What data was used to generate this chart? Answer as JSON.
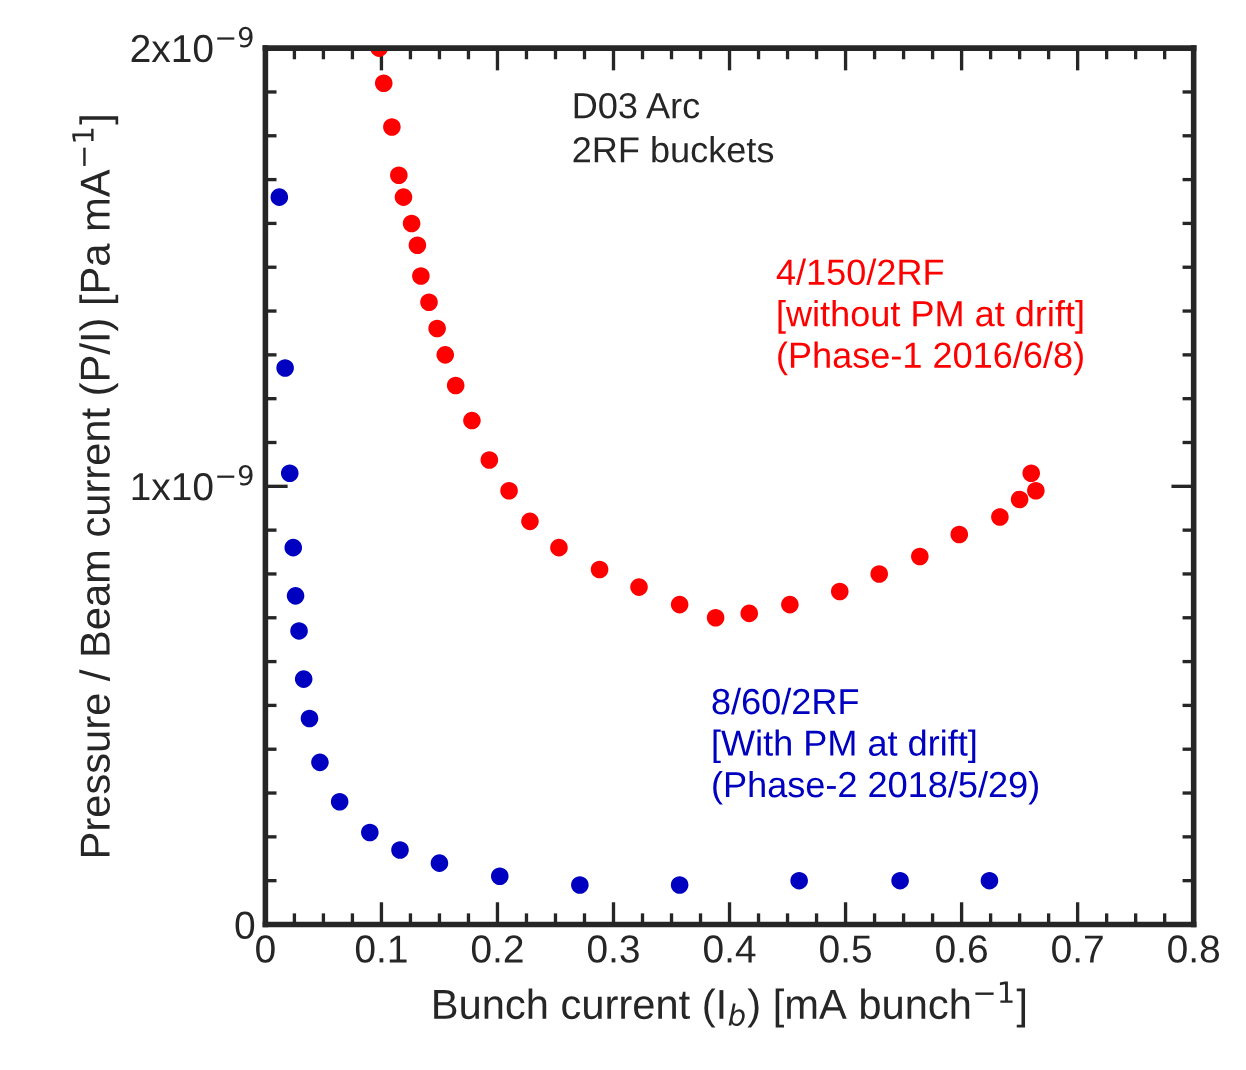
{
  "chart_data": {
    "type": "scatter",
    "xlabel": "Bunch current (I$_{b}$) [mA bunch$^{−1}$]",
    "ylabel": "Pressure / Beam current (P/I) [Pa mA$^{−1}$]",
    "annotations": [
      "D03 Arc\n2RF buckets"
    ],
    "xlim": [
      0,
      0.8
    ],
    "xticks": [
      0,
      0.1,
      0.2,
      0.3,
      0.4,
      0.5,
      0.6,
      0.7,
      0.8
    ],
    "ylim": [
      0,
      2e-09
    ],
    "yticks": [
      {
        "value": 0,
        "label": "0"
      },
      {
        "value": 1e-09,
        "label": "1x10$^{−9}$"
      },
      {
        "value": 2e-09,
        "label": "2x10$^{−9}$"
      }
    ],
    "grid": false,
    "marker": "circle",
    "series": [
      {
        "name": "4/150/2RF\n[without PM at drift]\n(Phase-1 2016/6/8)",
        "color": "#ff0000",
        "x": [
          0.098,
          0.102,
          0.109,
          0.115,
          0.119,
          0.126,
          0.131,
          0.134,
          0.141,
          0.148,
          0.155,
          0.164,
          0.178,
          0.193,
          0.21,
          0.228,
          0.253,
          0.288,
          0.322,
          0.357,
          0.388,
          0.417,
          0.452,
          0.495,
          0.529,
          0.564,
          0.598,
          0.633,
          0.65,
          0.657,
          0.66,
          0.664
        ],
        "values": [
          2e-09,
          1.92e-09,
          1.82e-09,
          1.71e-09,
          1.66e-09,
          1.6e-09,
          1.55e-09,
          1.48e-09,
          1.42e-09,
          1.36e-09,
          1.3e-09,
          1.23e-09,
          1.15e-09,
          1.06e-09,
          9.9e-10,
          9.2e-10,
          8.6e-10,
          8.1e-10,
          7.7e-10,
          7.3e-10,
          7e-10,
          7.1e-10,
          7.3e-10,
          7.6e-10,
          8e-10,
          8.4e-10,
          8.9e-10,
          9.3e-10,
          9.7e-10,
          null,
          1.03e-09,
          9.9e-10
        ]
      },
      {
        "name": "8/60/2RF\n[With PM at drift]\n(Phase-2 2018/5/29)",
        "color": "#0000c0",
        "x": [
          0.012,
          0.017,
          0.021,
          0.024,
          0.026,
          0.029,
          0.033,
          0.038,
          0.047,
          0.064,
          0.09,
          0.116,
          0.15,
          0.202,
          0.271,
          0.357,
          0.46,
          0.547,
          0.624
        ],
        "values": [
          1.66e-09,
          1.27e-09,
          1.03e-09,
          8.6e-10,
          7.5e-10,
          6.7e-10,
          5.6e-10,
          4.7e-10,
          3.7e-10,
          2.8e-10,
          2.1e-10,
          1.7e-10,
          1.4e-10,
          1.1e-10,
          9e-11,
          9e-11,
          1e-10,
          1e-10,
          1e-10
        ]
      }
    ]
  }
}
